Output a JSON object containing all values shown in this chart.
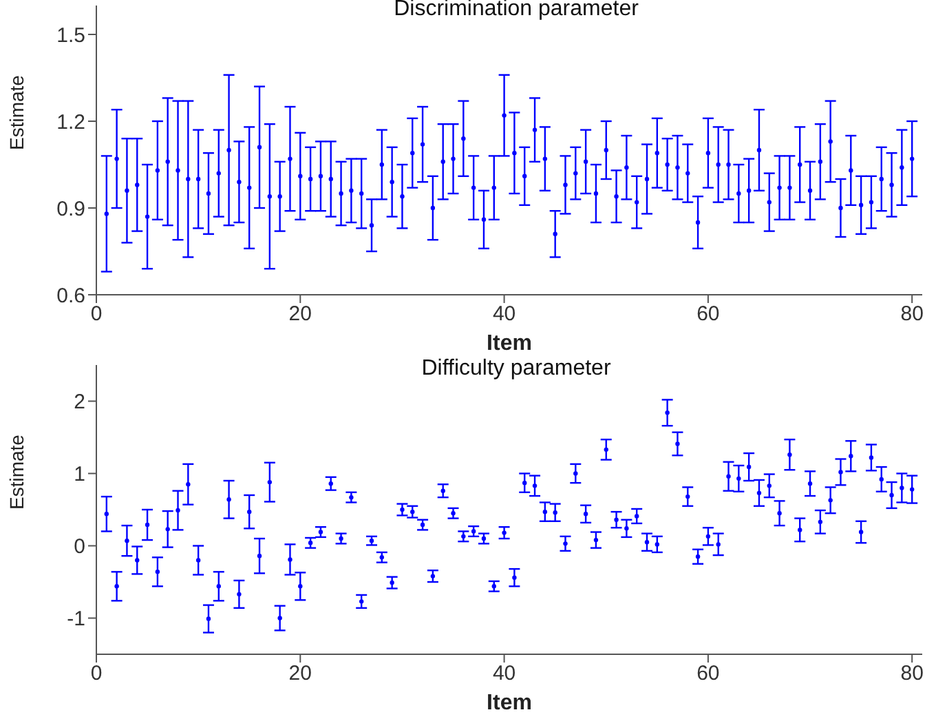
{
  "chart_data": [
    {
      "type": "scatter",
      "title": "Discrimination parameter",
      "xlabel": "Item",
      "ylabel": "Estimate",
      "color": "#0000ff",
      "marker": "circle",
      "xlim": [
        0,
        81
      ],
      "ylim": [
        0.6,
        1.6
      ],
      "xticks": [
        0,
        20,
        40,
        60,
        80
      ],
      "yticks": [
        0.6,
        0.9,
        1.2,
        1.5
      ],
      "x": [
        1,
        2,
        3,
        4,
        5,
        6,
        7,
        8,
        9,
        10,
        11,
        12,
        13,
        14,
        15,
        16,
        17,
        18,
        19,
        20,
        21,
        22,
        23,
        24,
        25,
        26,
        27,
        28,
        29,
        30,
        31,
        32,
        33,
        34,
        35,
        36,
        37,
        38,
        39,
        40,
        41,
        42,
        43,
        44,
        45,
        46,
        47,
        48,
        49,
        50,
        51,
        52,
        53,
        54,
        55,
        56,
        57,
        58,
        59,
        60,
        61,
        62,
        63,
        64,
        65,
        66,
        67,
        68,
        69,
        70,
        71,
        72,
        73,
        74,
        75,
        76,
        77,
        78,
        79,
        80
      ],
      "values": [
        0.88,
        1.07,
        0.96,
        0.98,
        0.87,
        1.03,
        1.06,
        1.03,
        1.0,
        1.0,
        0.95,
        1.02,
        1.1,
        0.99,
        0.97,
        1.11,
        0.94,
        0.94,
        1.07,
        1.01,
        1.0,
        1.01,
        1.0,
        0.95,
        0.96,
        0.95,
        0.84,
        1.05,
        0.99,
        0.94,
        1.09,
        1.12,
        0.9,
        1.06,
        1.07,
        1.14,
        0.97,
        0.86,
        0.97,
        1.22,
        1.09,
        1.01,
        1.17,
        1.07,
        0.81,
        0.98,
        1.02,
        1.06,
        0.95,
        1.1,
        0.94,
        1.04,
        0.92,
        1.0,
        1.09,
        1.05,
        1.04,
        1.02,
        0.85,
        1.09,
        1.05,
        1.05,
        0.95,
        0.96,
        1.1,
        0.92,
        0.97,
        0.97,
        1.05,
        0.96,
        1.06,
        1.13,
        0.9,
        1.03,
        0.91,
        0.92,
        1.0,
        0.98,
        1.04,
        1.07
      ],
      "errors": [
        0.2,
        0.17,
        0.18,
        0.16,
        0.18,
        0.17,
        0.22,
        0.24,
        0.27,
        0.17,
        0.14,
        0.15,
        0.26,
        0.14,
        0.21,
        0.21,
        0.25,
        0.12,
        0.18,
        0.15,
        0.11,
        0.12,
        0.13,
        0.11,
        0.11,
        0.12,
        0.09,
        0.12,
        0.12,
        0.11,
        0.12,
        0.13,
        0.11,
        0.13,
        0.12,
        0.13,
        0.11,
        0.1,
        0.11,
        0.14,
        0.14,
        0.1,
        0.11,
        0.11,
        0.08,
        0.1,
        0.09,
        0.11,
        0.1,
        0.1,
        0.09,
        0.11,
        0.09,
        0.12,
        0.12,
        0.09,
        0.11,
        0.1,
        0.09,
        0.12,
        0.13,
        0.12,
        0.1,
        0.11,
        0.14,
        0.1,
        0.11,
        0.11,
        0.13,
        0.1,
        0.13,
        0.14,
        0.1,
        0.12,
        0.1,
        0.09,
        0.11,
        0.11,
        0.13,
        0.13
      ]
    },
    {
      "type": "scatter",
      "title": "Difficulty parameter",
      "xlabel": "Item",
      "ylabel": "Estimate",
      "color": "#0000ff",
      "marker": "circle",
      "xlim": [
        0,
        81
      ],
      "ylim": [
        -1.5,
        2.5
      ],
      "xticks": [
        0,
        20,
        40,
        60,
        80
      ],
      "yticks": [
        -1,
        0,
        1,
        2
      ],
      "x": [
        1,
        2,
        3,
        4,
        5,
        6,
        7,
        8,
        9,
        10,
        11,
        12,
        13,
        14,
        15,
        16,
        17,
        18,
        19,
        20,
        21,
        22,
        23,
        24,
        25,
        26,
        27,
        28,
        29,
        30,
        31,
        32,
        33,
        34,
        35,
        36,
        37,
        38,
        39,
        40,
        41,
        42,
        43,
        44,
        45,
        46,
        47,
        48,
        49,
        50,
        51,
        52,
        53,
        54,
        55,
        56,
        57,
        58,
        59,
        60,
        61,
        62,
        63,
        64,
        65,
        66,
        67,
        68,
        69,
        70,
        71,
        72,
        73,
        74,
        75,
        76,
        77,
        78,
        79,
        80
      ],
      "values": [
        0.44,
        -0.56,
        0.07,
        -0.2,
        0.29,
        -0.36,
        0.23,
        0.49,
        0.85,
        -0.2,
        -1.01,
        -0.56,
        0.64,
        -0.67,
        0.47,
        -0.14,
        0.88,
        -1.0,
        -0.19,
        -0.56,
        0.04,
        0.19,
        0.86,
        0.1,
        0.67,
        -0.77,
        0.07,
        -0.16,
        -0.51,
        0.5,
        0.47,
        0.29,
        -0.42,
        0.76,
        0.45,
        0.13,
        0.2,
        0.1,
        -0.56,
        0.18,
        -0.44,
        0.87,
        0.83,
        0.47,
        0.46,
        0.03,
        1.0,
        0.44,
        0.08,
        1.33,
        0.36,
        0.24,
        0.41,
        0.05,
        0.02,
        1.84,
        1.41,
        0.68,
        -0.15,
        0.13,
        0.02,
        0.96,
        0.93,
        1.09,
        0.73,
        0.83,
        0.45,
        1.26,
        0.22,
        0.86,
        0.33,
        0.63,
        1.02,
        1.24,
        0.19,
        1.22,
        0.92,
        0.7,
        0.8,
        0.78
      ],
      "errors": [
        0.24,
        0.2,
        0.21,
        0.19,
        0.21,
        0.2,
        0.25,
        0.27,
        0.28,
        0.2,
        0.19,
        0.2,
        0.26,
        0.19,
        0.23,
        0.24,
        0.27,
        0.17,
        0.21,
        0.19,
        0.07,
        0.07,
        0.09,
        0.07,
        0.07,
        0.09,
        0.06,
        0.07,
        0.08,
        0.08,
        0.08,
        0.07,
        0.08,
        0.09,
        0.07,
        0.07,
        0.07,
        0.07,
        0.07,
        0.08,
        0.12,
        0.13,
        0.14,
        0.13,
        0.12,
        0.1,
        0.13,
        0.12,
        0.11,
        0.14,
        0.11,
        0.12,
        0.1,
        0.12,
        0.11,
        0.18,
        0.16,
        0.13,
        0.1,
        0.12,
        0.15,
        0.2,
        0.18,
        0.19,
        0.18,
        0.16,
        0.17,
        0.21,
        0.16,
        0.17,
        0.16,
        0.18,
        0.18,
        0.21,
        0.15,
        0.18,
        0.17,
        0.18,
        0.2,
        0.19
      ]
    }
  ]
}
